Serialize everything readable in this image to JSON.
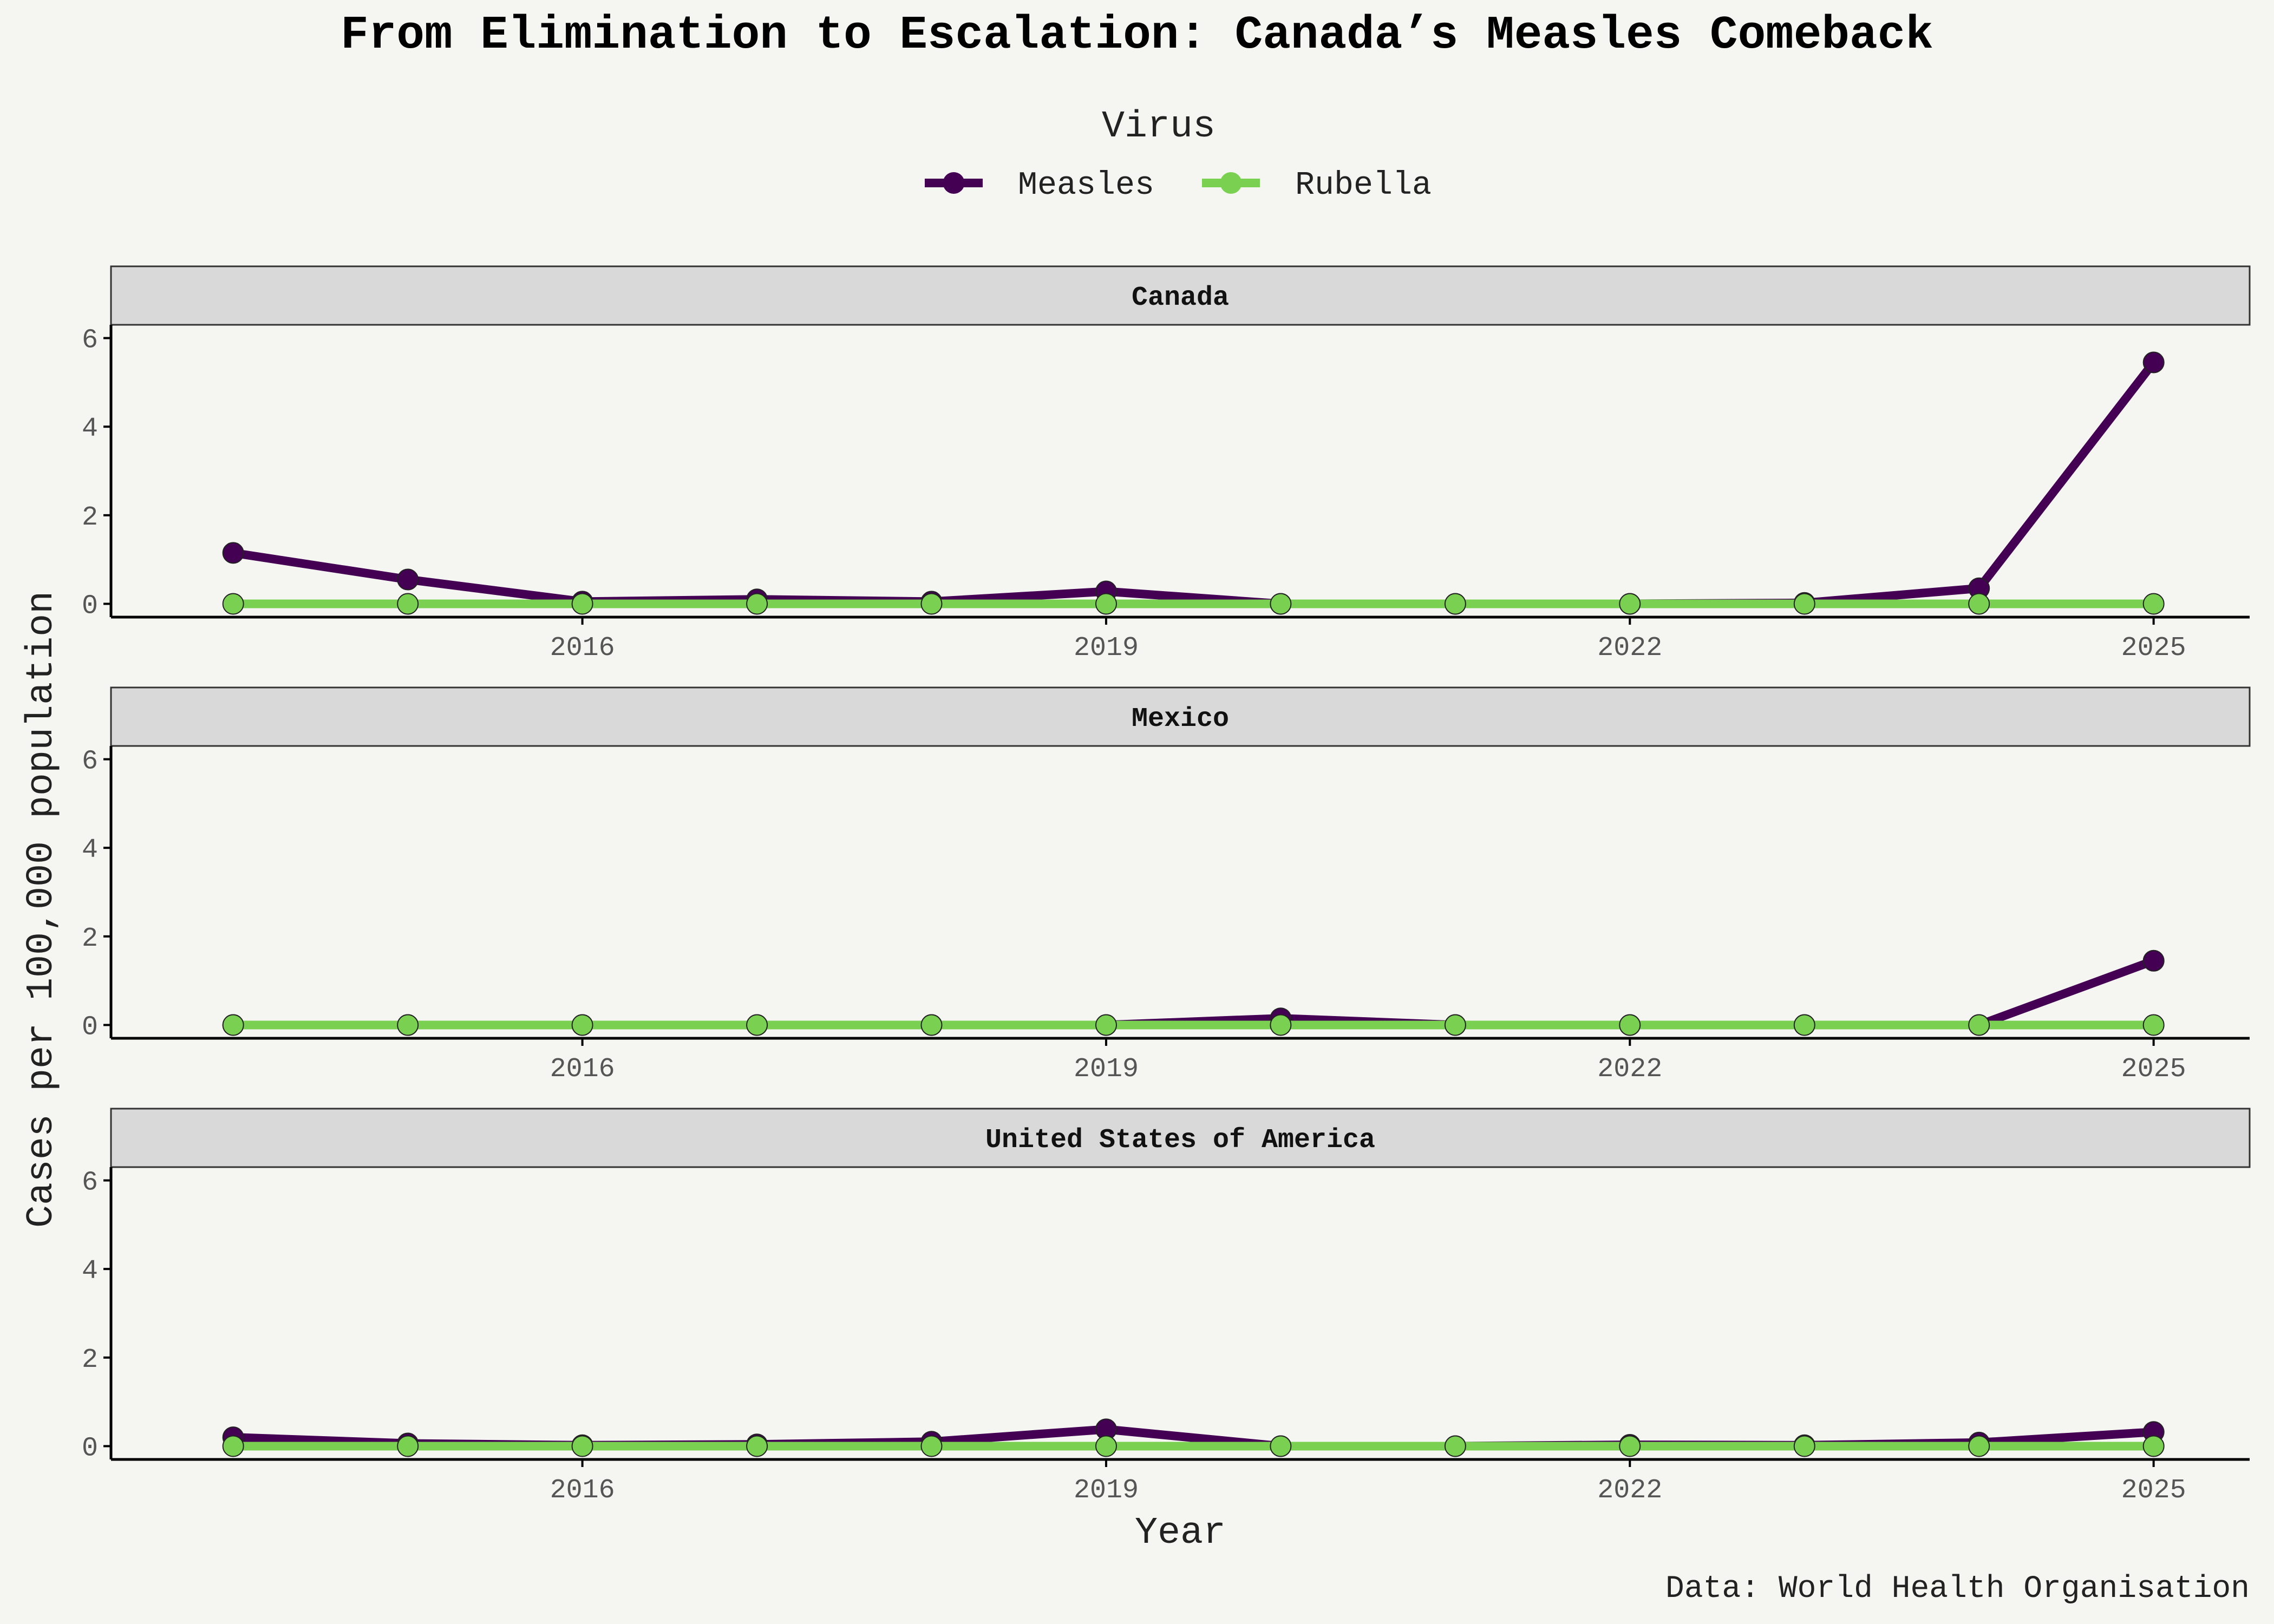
{
  "chart_data": {
    "type": "line",
    "title": "From Elimination to Escalation: Canada’s Measles Comeback",
    "caption": "Data: World Health Organisation",
    "xlabel": "Year",
    "ylabel": "Cases per 100,000 population",
    "legend": {
      "title": "Virus",
      "placement": "top",
      "entries": [
        "Measles",
        "Rubella"
      ]
    },
    "xlim": [
      2013.3,
      2025.55
    ],
    "xticks": [
      "2016",
      "2019",
      "2022",
      "2025"
    ],
    "ylim": [
      -0.3,
      6.3
    ],
    "yticks": [
      "0",
      "2",
      "4",
      "6"
    ],
    "grid": false,
    "colors": {
      "Measles": "#440154",
      "Rubella": "#7ad151",
      "strip": "#d9d9d9",
      "background": "#f5f5f2"
    },
    "x": [
      2014,
      2015,
      2016,
      2017,
      2018,
      2019,
      2020,
      2021,
      2022,
      2023,
      2024,
      2025
    ],
    "facets": [
      {
        "panel": "Canada",
        "series": [
          {
            "name": "Measles",
            "values": [
              1.15,
              0.55,
              0.05,
              0.1,
              0.05,
              0.28,
              0.0,
              0.0,
              0.0,
              0.02,
              0.35,
              5.45
            ]
          },
          {
            "name": "Rubella",
            "values": [
              0.0,
              0.0,
              0.0,
              0.0,
              0.0,
              0.0,
              0.0,
              0.0,
              0.0,
              0.0,
              0.0,
              0.0
            ]
          }
        ]
      },
      {
        "panel": "Mexico",
        "series": [
          {
            "name": "Measles",
            "values": [
              0.0,
              0.0,
              0.0,
              0.0,
              0.0,
              0.0,
              0.15,
              0.0,
              0.0,
              0.0,
              0.0,
              1.45
            ]
          },
          {
            "name": "Rubella",
            "values": [
              0.0,
              0.0,
              0.0,
              0.0,
              0.0,
              0.0,
              0.0,
              0.0,
              0.0,
              0.0,
              0.0,
              0.0
            ]
          }
        ]
      },
      {
        "panel": "United States of America",
        "series": [
          {
            "name": "Measles",
            "values": [
              0.2,
              0.06,
              0.02,
              0.04,
              0.1,
              0.38,
              0.0,
              0.0,
              0.03,
              0.02,
              0.08,
              0.32
            ]
          },
          {
            "name": "Rubella",
            "values": [
              0.0,
              0.0,
              0.0,
              0.0,
              0.0,
              0.0,
              0.0,
              0.0,
              0.0,
              0.0,
              0.0,
              0.0
            ]
          }
        ]
      }
    ]
  }
}
